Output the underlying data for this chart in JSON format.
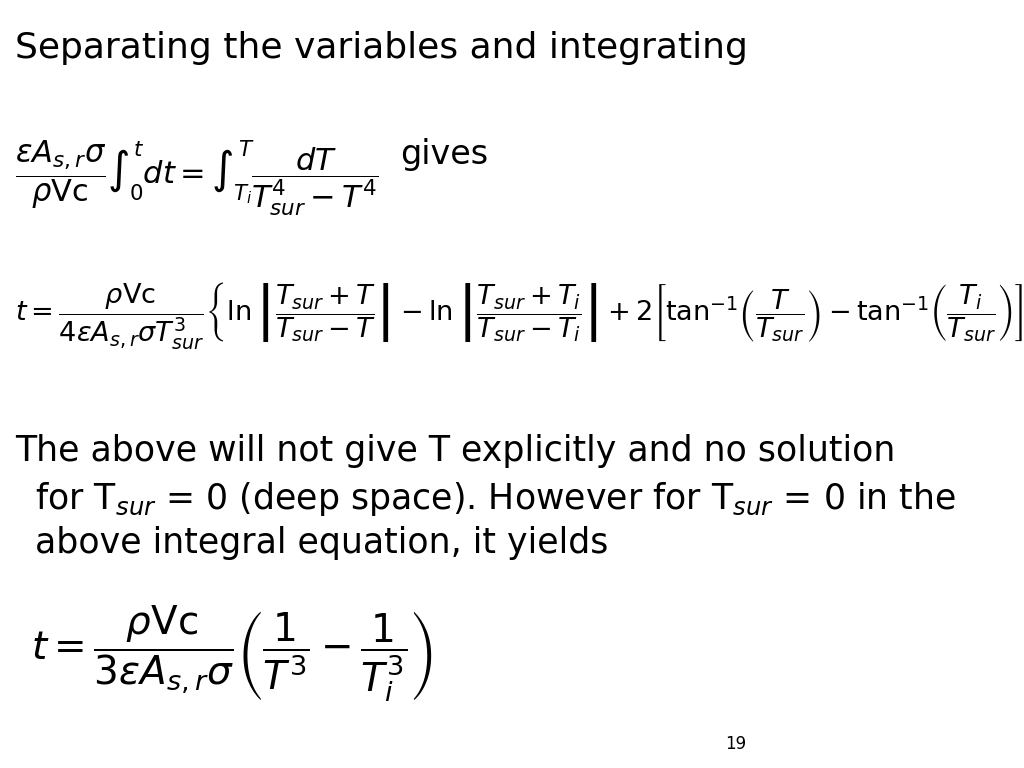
{
  "title": "Separating the variables and integrating",
  "background_color": "#ffffff",
  "text_color": "#000000",
  "page_number": "19",
  "eq1": "$\\dfrac{\\varepsilon A_{s,r}\\sigma}{\\rho \\text{Vc}} \\int_0^t dt = \\int_{T_i}^{T} \\dfrac{dT}{T_{sur}^4 - T^4}$",
  "eq1_gives": "gives",
  "eq2": "$t = \\dfrac{\\rho \\text{Vc}}{4\\varepsilon A_{s,r}\\sigma T_{sur}^3} \\left\\{ \\ln\\left|\\dfrac{T_{sur}+T}{T_{sur}-T}\\right| - \\ln\\left|\\dfrac{T_{sur}+T_i}{T_{sur}-T_i}\\right| + 2\\left[ \\tan^{-1}\\left(\\dfrac{T}{T_{sur}}\\right) - \\tan^{-1}\\left(\\dfrac{T_i}{T_{sur}}\\right) \\right] \\right\\}$",
  "text1": "The above will not give T explicitly and no solution",
  "text2": "for $\\text{T}_{sur}$ = 0 (deep space). However for $\\text{T}_{sur}$ = 0 in the",
  "text3": "above integral equation, it yields",
  "eq3": "$t = \\dfrac{\\rho \\text{Vc}}{3\\varepsilon A_{s,r}\\sigma} \\left( \\dfrac{1}{T^3} - \\dfrac{1}{T_i^3} \\right)$"
}
